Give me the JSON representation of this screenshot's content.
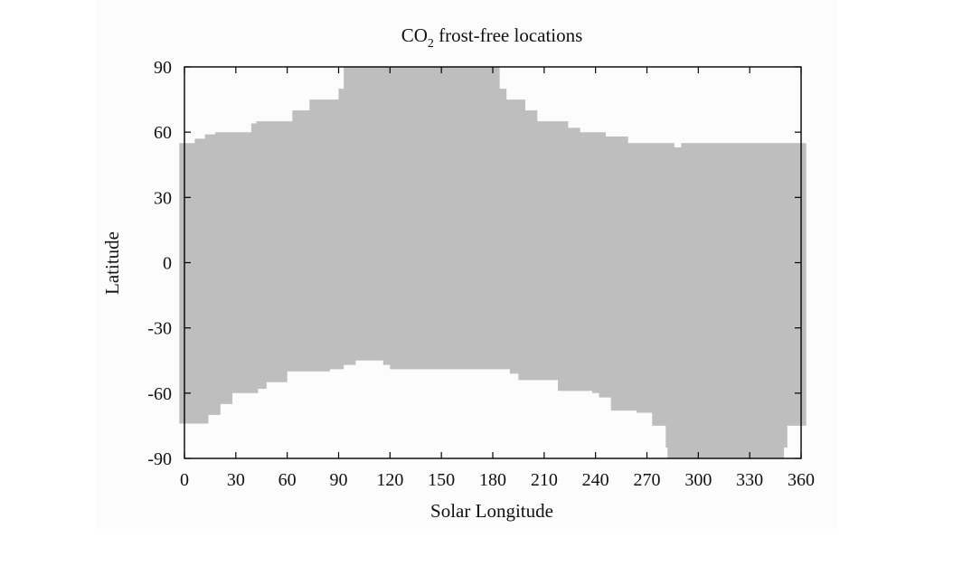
{
  "chart_data": {
    "type": "area",
    "title": "CO",
    "title_subscript": "2",
    "title_rest": " frost-free locations",
    "xlabel": "Solar Longitude",
    "ylabel": "Latitude",
    "xlim": [
      0,
      360
    ],
    "ylim": [
      -90,
      90
    ],
    "xticks": [
      0,
      30,
      60,
      90,
      120,
      150,
      180,
      210,
      240,
      270,
      300,
      330,
      360
    ],
    "yticks": [
      90,
      60,
      30,
      0,
      -30,
      -60,
      -90
    ],
    "grid": false,
    "fill_color": "#bebebe",
    "series": [
      {
        "upper": [
          [
            -3,
            55
          ],
          [
            6,
            55
          ],
          [
            6,
            57
          ],
          [
            12,
            57
          ],
          [
            12,
            59
          ],
          [
            18,
            59
          ],
          [
            18,
            60
          ],
          [
            39,
            60
          ],
          [
            39,
            64
          ],
          [
            42,
            64
          ],
          [
            42,
            65
          ],
          [
            63,
            65
          ],
          [
            63,
            70
          ],
          [
            73,
            70
          ],
          [
            73,
            75
          ],
          [
            90,
            75
          ],
          [
            90,
            80
          ],
          [
            93,
            80
          ],
          [
            93,
            90
          ],
          [
            184,
            90
          ],
          [
            184,
            80
          ],
          [
            188,
            80
          ],
          [
            188,
            75
          ],
          [
            199,
            75
          ],
          [
            199,
            70
          ],
          [
            206,
            70
          ],
          [
            206,
            65
          ],
          [
            224,
            65
          ],
          [
            224,
            62
          ],
          [
            231,
            62
          ],
          [
            231,
            60
          ],
          [
            246,
            60
          ],
          [
            246,
            58
          ],
          [
            259,
            58
          ],
          [
            259,
            55
          ],
          [
            286,
            55
          ],
          [
            286,
            53
          ],
          [
            290,
            53
          ],
          [
            290,
            55
          ],
          [
            363,
            55
          ]
        ],
        "lower": [
          [
            -3,
            -74
          ],
          [
            14,
            -74
          ],
          [
            14,
            -70
          ],
          [
            21,
            -70
          ],
          [
            21,
            -65
          ],
          [
            28,
            -65
          ],
          [
            28,
            -60
          ],
          [
            43,
            -60
          ],
          [
            43,
            -58
          ],
          [
            48,
            -58
          ],
          [
            48,
            -55
          ],
          [
            60,
            -55
          ],
          [
            60,
            -50
          ],
          [
            85,
            -50
          ],
          [
            85,
            -49
          ],
          [
            93,
            -49
          ],
          [
            93,
            -47
          ],
          [
            100,
            -47
          ],
          [
            100,
            -45
          ],
          [
            116,
            -45
          ],
          [
            116,
            -47
          ],
          [
            120,
            -47
          ],
          [
            120,
            -49
          ],
          [
            190,
            -49
          ],
          [
            190,
            -51
          ],
          [
            195,
            -51
          ],
          [
            195,
            -54
          ],
          [
            218,
            -54
          ],
          [
            218,
            -59
          ],
          [
            238,
            -59
          ],
          [
            238,
            -60
          ],
          [
            242,
            -60
          ],
          [
            242,
            -62
          ],
          [
            249,
            -62
          ],
          [
            249,
            -68
          ],
          [
            264,
            -68
          ],
          [
            264,
            -69
          ],
          [
            273,
            -69
          ],
          [
            273,
            -75
          ],
          [
            281,
            -75
          ],
          [
            281,
            -85
          ],
          [
            282,
            -85
          ],
          [
            282,
            -90
          ],
          [
            350,
            -90
          ],
          [
            350,
            -85
          ],
          [
            352,
            -85
          ],
          [
            352,
            -75
          ],
          [
            363,
            -75
          ]
        ]
      }
    ]
  }
}
